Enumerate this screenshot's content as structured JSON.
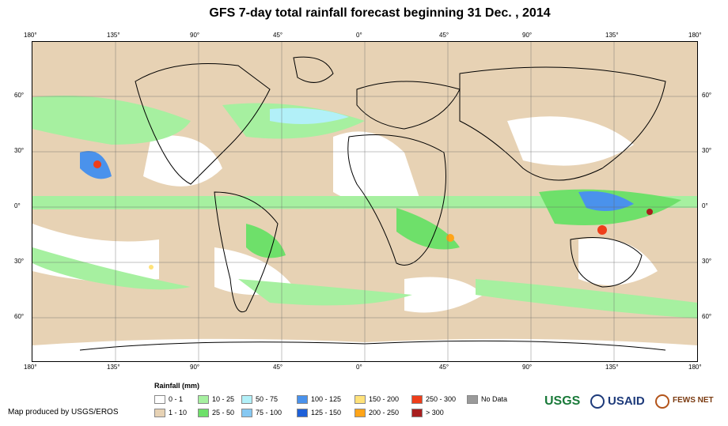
{
  "title": "GFS 7-day total rainfall forecast beginning 31 Dec. , 2014",
  "lon_ticks": [
    "180°",
    "135°",
    "90°",
    "45°",
    "0°",
    "45°",
    "90°",
    "135°",
    "180°"
  ],
  "lat_ticks": [
    "60°",
    "30°",
    "0°",
    "30°",
    "60°"
  ],
  "legend": {
    "title": "Rainfall (mm)",
    "items": [
      {
        "label": "0 - 1",
        "color": "#ffffff"
      },
      {
        "label": "1 - 10",
        "color": "#e7d2b4"
      },
      {
        "label": "10 - 25",
        "color": "#a6f0a0"
      },
      {
        "label": "25 - 50",
        "color": "#6ee06a"
      },
      {
        "label": "50 - 75",
        "color": "#b2f0f8"
      },
      {
        "label": "75 - 100",
        "color": "#86c8f2"
      },
      {
        "label": "100 - 125",
        "color": "#4a92ec"
      },
      {
        "label": "125 - 150",
        "color": "#1e60d8"
      },
      {
        "label": "150 - 200",
        "color": "#ffe27a"
      },
      {
        "label": "200 - 250",
        "color": "#ffa418"
      },
      {
        "label": "250 - 300",
        "color": "#ee3e1a"
      },
      {
        "label": "> 300",
        "color": "#a81e1e"
      },
      {
        "label": "No Data",
        "color": "#9a9a9a"
      }
    ]
  },
  "credit": "Map produced by USGS/EROS",
  "logos": {
    "usgs": "USGS",
    "usaid": "USAID",
    "fews": "FEWS NET"
  }
}
